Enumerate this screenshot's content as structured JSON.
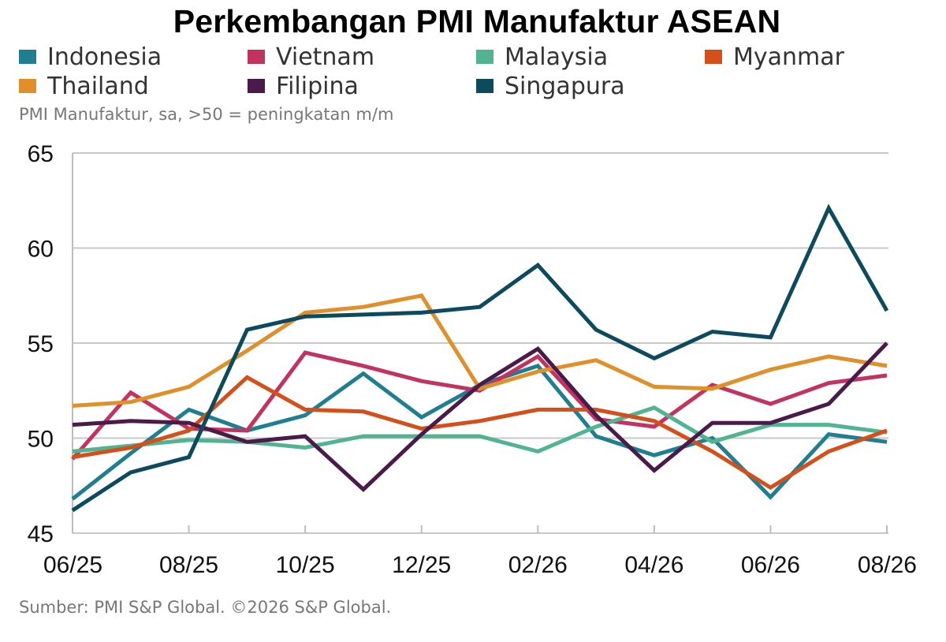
{
  "chart_data": {
    "type": "line",
    "title": "Perkembangan PMI Manufaktur ASEAN",
    "subtitle": "PMI Manufaktur, sa, >50 = peningkatan m/m",
    "source": "Sumber: PMI S&P Global. ©2026 S&P Global.",
    "x": [
      "06/25",
      "07/25",
      "08/25",
      "09/25",
      "10/25",
      "11/25",
      "12/25",
      "01/26",
      "02/26",
      "03/26",
      "04/26",
      "05/26",
      "06/26",
      "07/26",
      "08/26"
    ],
    "x_tick_labels": [
      "06/25",
      "08/25",
      "10/25",
      "12/25",
      "02/26",
      "04/26",
      "06/26",
      "08/26"
    ],
    "ylim": [
      45,
      65
    ],
    "y_ticks": [
      45,
      50,
      55,
      60,
      65
    ],
    "grid": true,
    "legend_position": "top",
    "series": [
      {
        "name": "Indonesia",
        "color": "#1f7f91",
        "values": [
          46.8,
          49.2,
          51.5,
          50.4,
          51.2,
          53.4,
          51.1,
          52.8,
          53.8,
          50.1,
          49.1,
          50.0,
          46.9,
          50.2,
          49.8
        ]
      },
      {
        "name": "Vietnam",
        "color": "#c2345f",
        "values": [
          48.9,
          52.4,
          50.5,
          50.4,
          54.5,
          53.8,
          53.0,
          52.5,
          54.3,
          51.0,
          50.6,
          52.8,
          51.8,
          52.9,
          53.3
        ]
      },
      {
        "name": "Malaysia",
        "color": "#4fb48f",
        "values": [
          49.3,
          49.6,
          49.9,
          49.8,
          49.5,
          50.1,
          50.1,
          50.1,
          49.3,
          50.6,
          51.6,
          49.8,
          50.7,
          50.7,
          50.3
        ]
      },
      {
        "name": "Myanmar",
        "color": "#d4501a",
        "values": [
          49.0,
          49.5,
          50.4,
          53.2,
          51.5,
          51.4,
          50.5,
          50.9,
          51.5,
          51.5,
          50.9,
          49.3,
          47.4,
          49.3,
          50.4
        ]
      },
      {
        "name": "Thailand",
        "color": "#e0902b",
        "values": [
          51.7,
          51.9,
          52.7,
          54.6,
          56.6,
          56.9,
          57.5,
          52.6,
          53.5,
          54.1,
          52.7,
          52.6,
          53.6,
          54.3,
          53.8
        ]
      },
      {
        "name": "Filipina",
        "color": "#4a1a4a",
        "values": [
          50.7,
          50.9,
          50.8,
          49.8,
          50.1,
          47.3,
          50.2,
          52.8,
          54.7,
          51.2,
          48.3,
          50.8,
          50.8,
          51.8,
          55.0
        ]
      },
      {
        "name": "Singapura",
        "color": "#0c4a5e",
        "values": [
          46.2,
          48.2,
          49.0,
          55.7,
          56.4,
          56.5,
          56.6,
          56.9,
          59.1,
          55.7,
          54.2,
          55.6,
          55.3,
          62.1,
          56.7
        ]
      }
    ]
  }
}
